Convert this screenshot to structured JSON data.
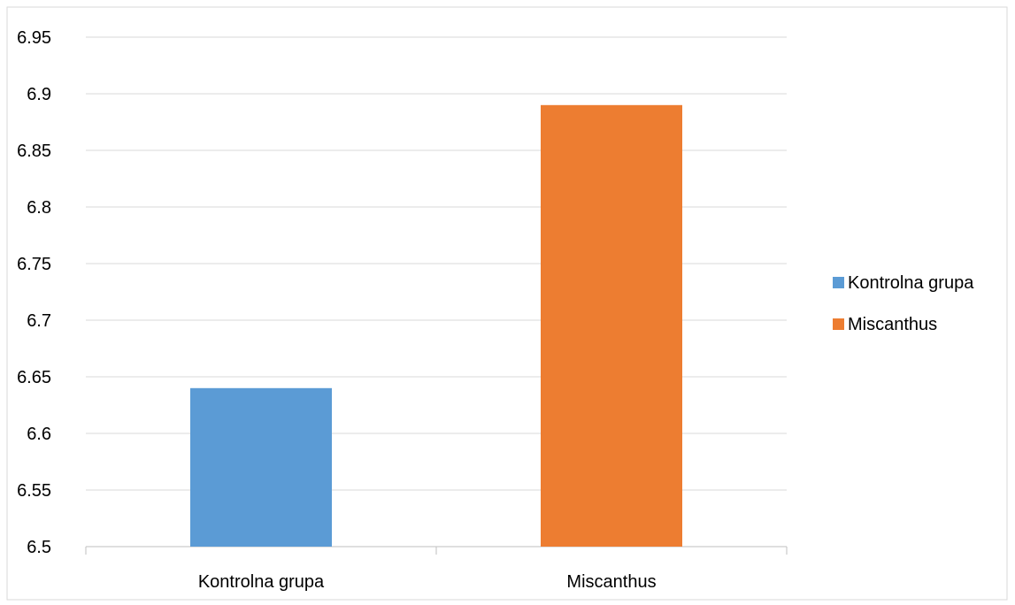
{
  "chart_data": {
    "type": "bar",
    "categories": [
      "Kontrolna grupa",
      "Miscanthus"
    ],
    "values": [
      6.64,
      6.89
    ],
    "colors": [
      "#5b9bd5",
      "#ed7d31"
    ],
    "ylim": [
      6.5,
      6.95
    ],
    "yticks": [
      "6.5",
      "6.55",
      "6.6",
      "6.65",
      "6.7",
      "6.75",
      "6.8",
      "6.85",
      "6.9",
      "6.95"
    ],
    "grid": true,
    "legend": {
      "position": "right",
      "entries": [
        {
          "label": "Kontrolna grupa",
          "color": "#5b9bd5"
        },
        {
          "label": "Miscanthus",
          "color": "#ed7d31"
        }
      ]
    }
  }
}
